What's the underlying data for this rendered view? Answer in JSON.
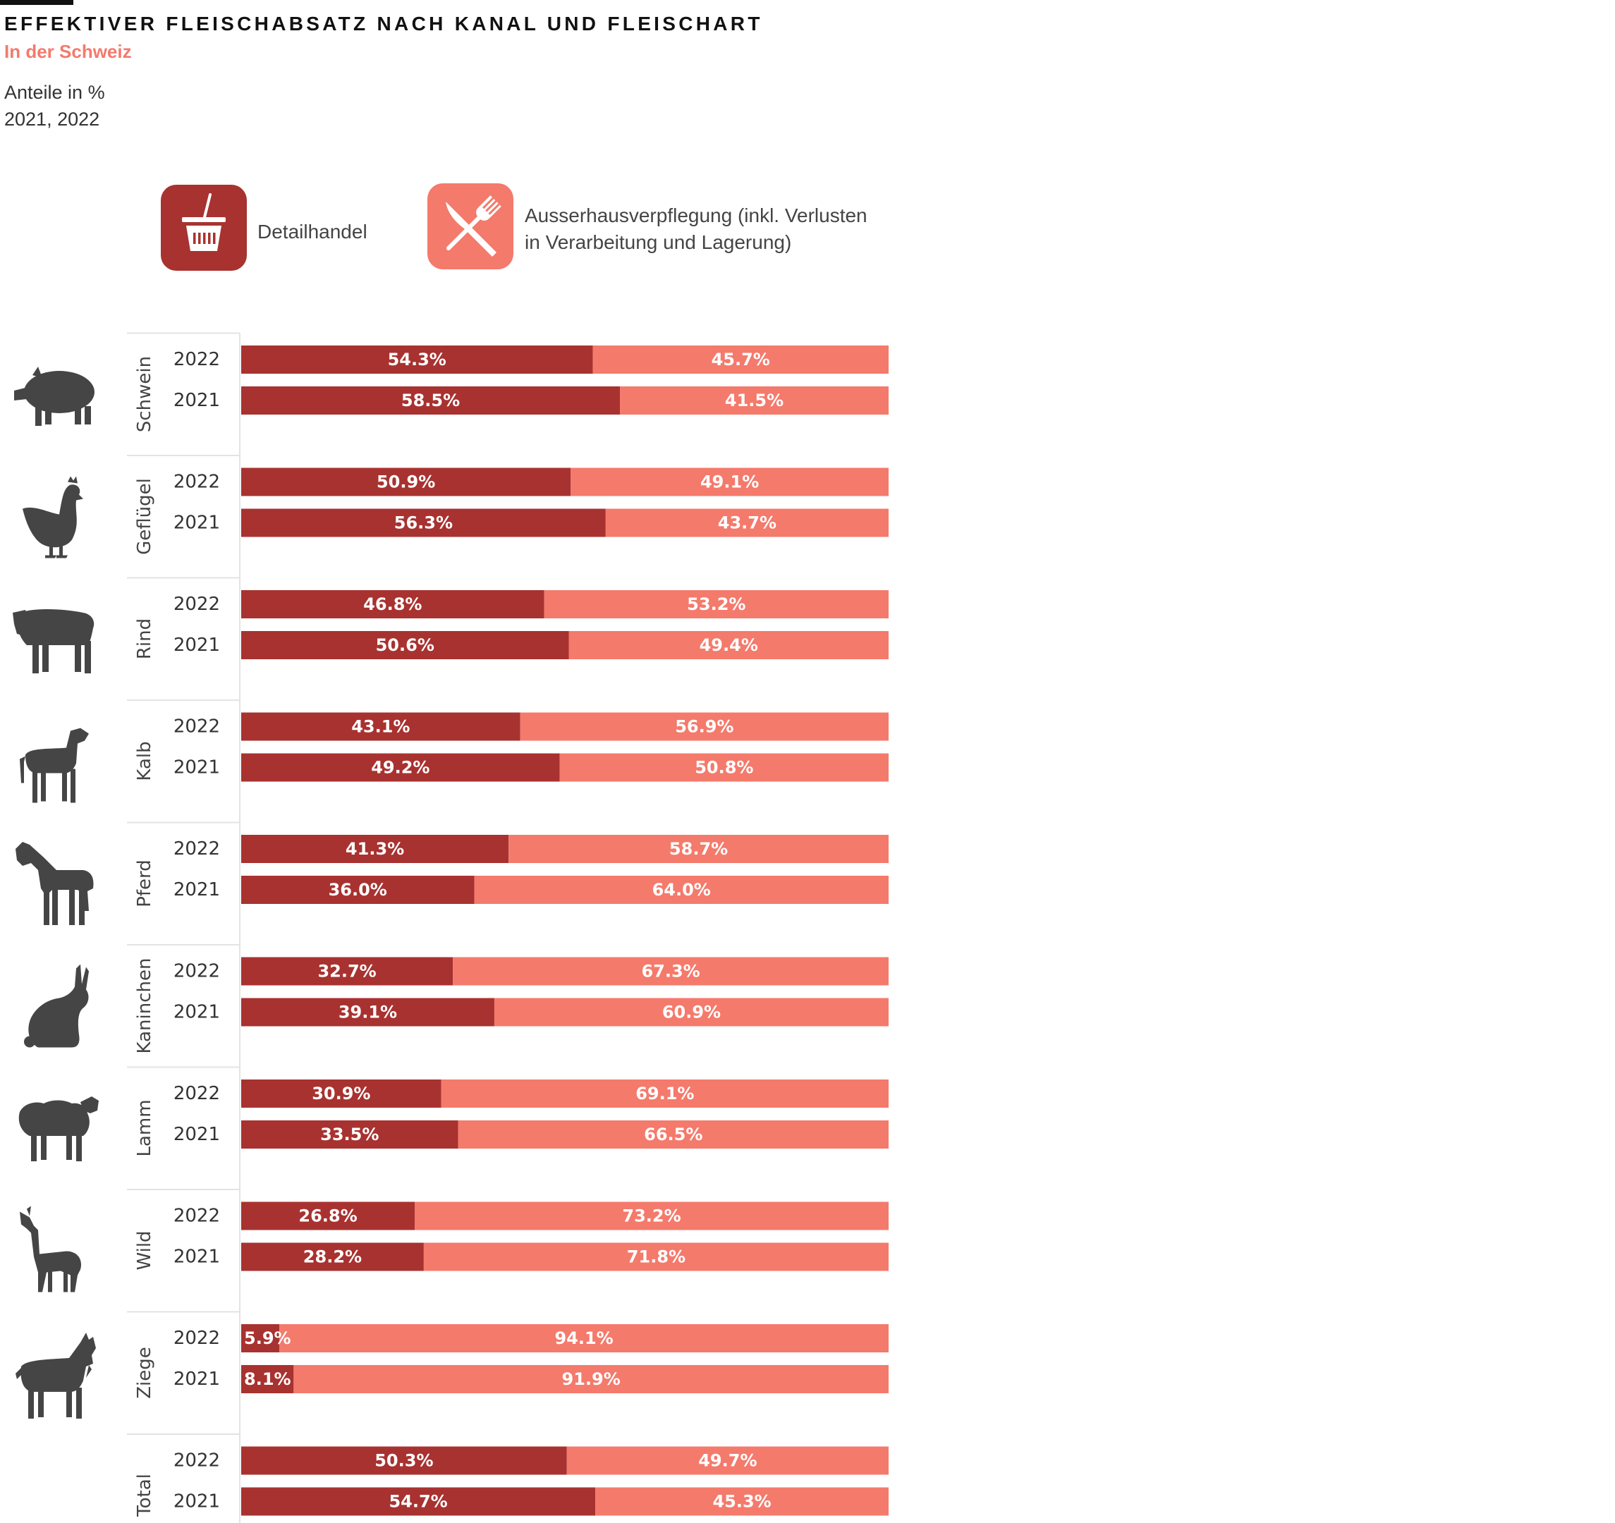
{
  "header": {
    "title": "EFFEKTIVER FLEISCHABSATZ NACH KANAL UND FLEISCHART",
    "subtitle": "In der Schweiz",
    "unit_note": "Anteile in %",
    "years_note": "2021, 2022"
  },
  "legend": {
    "retail_label": "Detailhandel",
    "food_service_label_line1": "Ausserhausverpflegung (inkl. Verlusten",
    "food_service_label_line2": "in Verarbeitung und Lagerung)",
    "retail_icon": "basket-icon",
    "food_service_icon": "fork-knife-icon"
  },
  "colors": {
    "retail": "#A83230",
    "food_service": "#F47A6C",
    "subtitle": "#F47A6C",
    "icon_silhouette": "#454545"
  },
  "chart_data": {
    "type": "bar",
    "orientation": "horizontal",
    "stacked": true,
    "title": "EFFEKTIVER FLEISCHABSATZ NACH KANAL UND FLEISCHART",
    "subtitle": "In der Schweiz",
    "unit": "%",
    "xlim": [
      0,
      100
    ],
    "series_names": [
      "Detailhandel",
      "Ausserhausverpflegung (inkl. Verlusten in Verarbeitung und Lagerung)"
    ],
    "groups": [
      {
        "category": "Schwein",
        "icon": "pig-icon",
        "rows": [
          {
            "year": "2022",
            "retail": 54.3,
            "food_service": 45.7
          },
          {
            "year": "2021",
            "retail": 58.5,
            "food_service": 41.5
          }
        ]
      },
      {
        "category": "Geflügel",
        "icon": "chicken-icon",
        "rows": [
          {
            "year": "2022",
            "retail": 50.9,
            "food_service": 49.1
          },
          {
            "year": "2021",
            "retail": 56.3,
            "food_service": 43.7
          }
        ]
      },
      {
        "category": "Rind",
        "icon": "cow-icon",
        "rows": [
          {
            "year": "2022",
            "retail": 46.8,
            "food_service": 53.2
          },
          {
            "year": "2021",
            "retail": 50.6,
            "food_service": 49.4
          }
        ]
      },
      {
        "category": "Kalb",
        "icon": "calf-icon",
        "rows": [
          {
            "year": "2022",
            "retail": 43.1,
            "food_service": 56.9
          },
          {
            "year": "2021",
            "retail": 49.2,
            "food_service": 50.8
          }
        ]
      },
      {
        "category": "Pferd",
        "icon": "horse-icon",
        "rows": [
          {
            "year": "2022",
            "retail": 41.3,
            "food_service": 58.7
          },
          {
            "year": "2021",
            "retail": 36.0,
            "food_service": 64.0
          }
        ]
      },
      {
        "category": "Kaninchen",
        "icon": "rabbit-icon",
        "rows": [
          {
            "year": "2022",
            "retail": 32.7,
            "food_service": 67.3
          },
          {
            "year": "2021",
            "retail": 39.1,
            "food_service": 60.9
          }
        ]
      },
      {
        "category": "Lamm",
        "icon": "sheep-icon",
        "rows": [
          {
            "year": "2022",
            "retail": 30.9,
            "food_service": 69.1
          },
          {
            "year": "2021",
            "retail": 33.5,
            "food_service": 66.5
          }
        ]
      },
      {
        "category": "Wild",
        "icon": "deer-icon",
        "rows": [
          {
            "year": "2022",
            "retail": 26.8,
            "food_service": 73.2
          },
          {
            "year": "2021",
            "retail": 28.2,
            "food_service": 71.8
          }
        ]
      },
      {
        "category": "Ziege",
        "icon": "goat-icon",
        "rows": [
          {
            "year": "2022",
            "retail": 5.9,
            "food_service": 94.1
          },
          {
            "year": "2021",
            "retail": 8.1,
            "food_service": 91.9
          }
        ]
      },
      {
        "category": "Total",
        "icon": "",
        "rows": [
          {
            "year": "2022",
            "retail": 50.3,
            "food_service": 49.7
          },
          {
            "year": "2021",
            "retail": 54.7,
            "food_service": 45.3
          }
        ]
      }
    ]
  }
}
